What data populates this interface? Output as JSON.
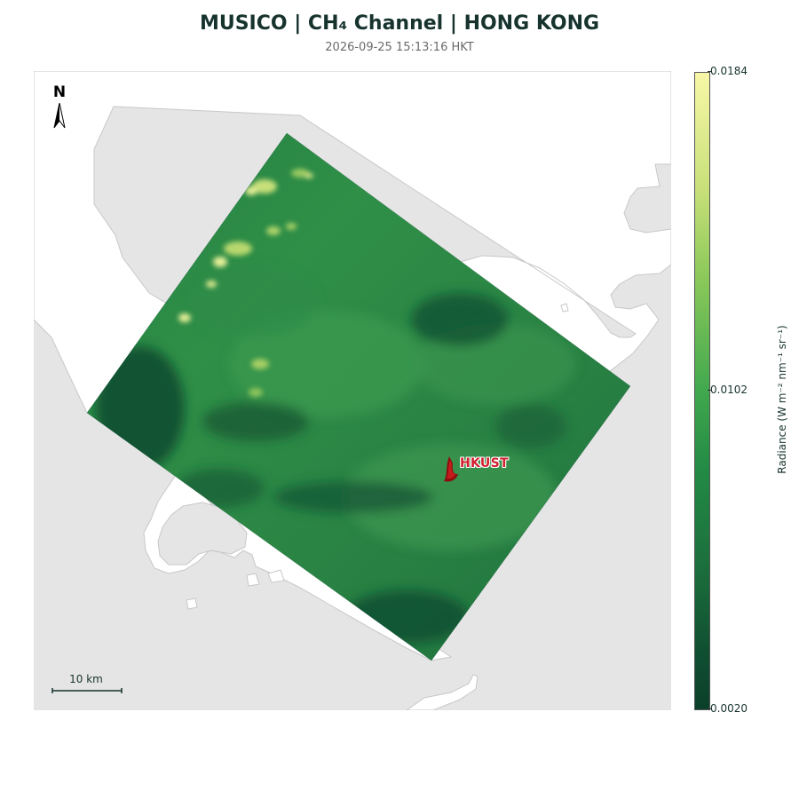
{
  "header": {
    "title": "MUSICO | CH₄ Channel | HONG KONG",
    "timestamp": "2026-09-25 15:13:16 HKT"
  },
  "map": {
    "north_label": "N",
    "scale_label": "10 km",
    "site_label": "HKUST",
    "land_color": "#e5e5e5",
    "water_color": "#ffffff",
    "site_color": "#d2202f"
  },
  "colorbar": {
    "label": "Radiance (W m⁻² nm⁻¹ sr⁻¹)",
    "max": "0.0184",
    "mid": "0.0102",
    "min": "0.0020",
    "colormap": [
      "#f7f7a7",
      "#8cc95a",
      "#238b45",
      "#0b3f2a"
    ]
  }
}
